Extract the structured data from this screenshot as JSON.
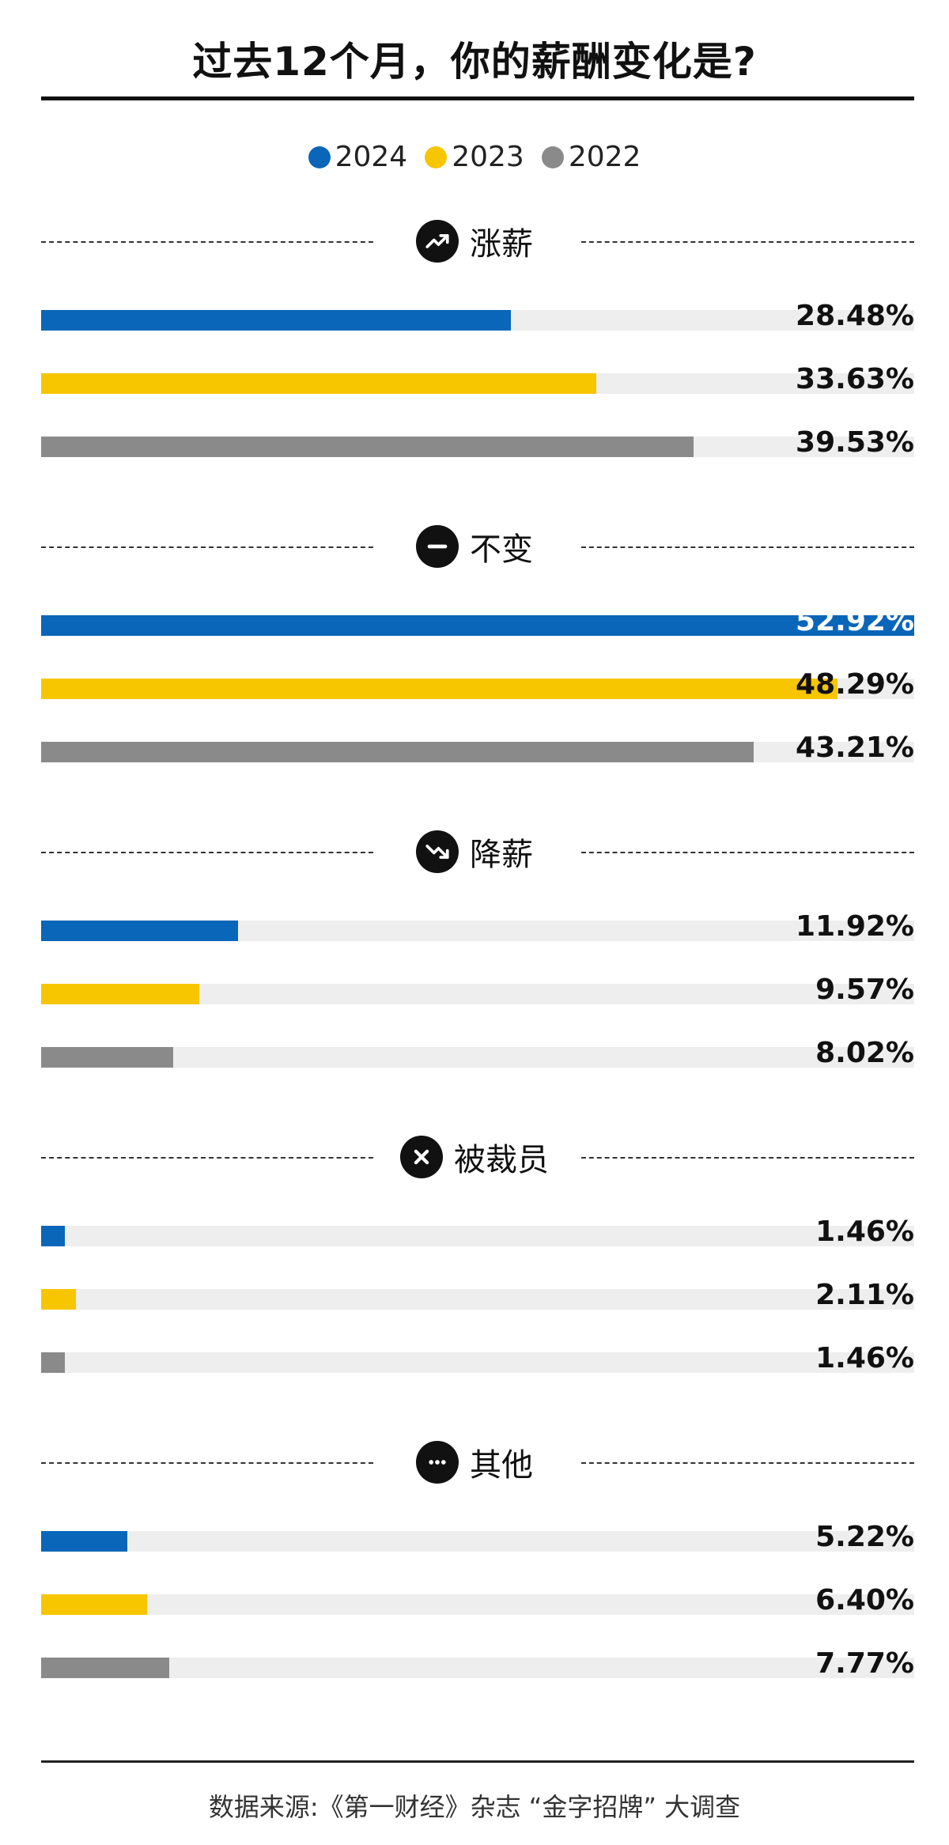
{
  "title": "过去12个月，你的薪酬变化是?",
  "legend": [
    {
      "label": "2024",
      "color": "#0a66b8"
    },
    {
      "label": "2023",
      "color": "#f7c600"
    },
    {
      "label": "2022",
      "color": "#8a8a8a"
    }
  ],
  "icons": [
    "trending-up-icon",
    "minus-icon",
    "trending-down-icon",
    "close-icon",
    "more-icon"
  ],
  "chart_data": {
    "type": "bar",
    "orientation": "horizontal",
    "unit": "%",
    "categories": [
      "涨薪",
      "不变",
      "降薪",
      "被裁员",
      "其他"
    ],
    "series": [
      {
        "name": "2024",
        "color": "#0a66b8",
        "values": [
          28.48,
          52.92,
          11.92,
          1.46,
          5.22
        ]
      },
      {
        "name": "2023",
        "color": "#f7c600",
        "values": [
          33.63,
          48.29,
          9.57,
          2.11,
          6.4
        ]
      },
      {
        "name": "2022",
        "color": "#8a8a8a",
        "values": [
          39.53,
          43.21,
          8.02,
          1.46,
          7.77
        ]
      }
    ],
    "value_labels": [
      [
        "28.48%",
        "33.63%",
        "39.53%"
      ],
      [
        "52.92%",
        "48.29%",
        "43.21%"
      ],
      [
        "11.92%",
        "9.57%",
        "8.02%"
      ],
      [
        "1.46%",
        "2.11%",
        "1.46%"
      ],
      [
        "5.22%",
        "6.40%",
        "7.77%"
      ]
    ],
    "xlim": [
      0,
      52.92
    ],
    "legend_position": "top-center"
  },
  "footer": {
    "source": "数据来源:《第一财经》杂志 “金字招牌” 大调查"
  }
}
